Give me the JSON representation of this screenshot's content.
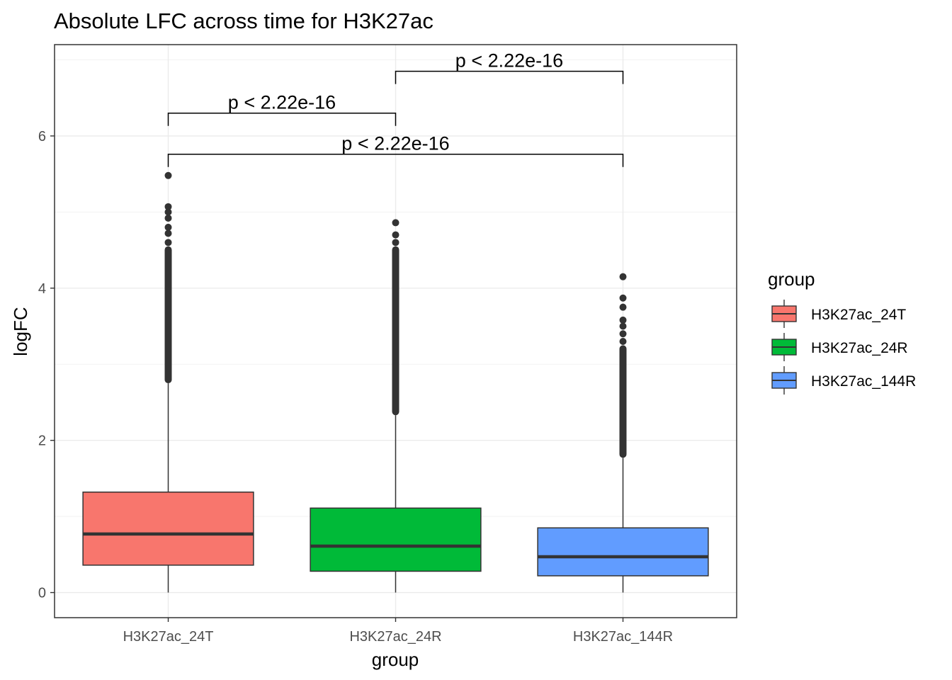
{
  "chart_data": {
    "type": "box",
    "title": "Absolute LFC across time for H3K27ac",
    "xlabel": "group",
    "ylabel": "logFC",
    "ylim": [
      -0.33,
      7.2
    ],
    "yticks": [
      0,
      2,
      4,
      6
    ],
    "grid": true,
    "legend": {
      "title": "group",
      "position": "right",
      "entries": [
        "H3K27ac_24T",
        "H3K27ac_24R",
        "H3K27ac_144R"
      ]
    },
    "categories": [
      "H3K27ac_24T",
      "H3K27ac_24R",
      "H3K27ac_144R"
    ],
    "boxes": [
      {
        "group": "H3K27ac_24T",
        "color": "#F8766D",
        "min": 0,
        "q1": 0.36,
        "median": 0.77,
        "q3": 1.32,
        "max": 2.75,
        "outliers_dense": [
          2.75,
          4.55
        ],
        "outliers": [
          4.6,
          4.72,
          4.8,
          4.92,
          5.0,
          5.07,
          5.48
        ]
      },
      {
        "group": "H3K27ac_24R",
        "color": "#00BA38",
        "min": 0,
        "q1": 0.28,
        "median": 0.61,
        "q3": 1.11,
        "max": 2.33,
        "outliers_dense": [
          2.33,
          4.55
        ],
        "outliers": [
          4.6,
          4.7,
          4.86
        ]
      },
      {
        "group": "H3K27ac_144R",
        "color": "#619CFF",
        "min": 0,
        "q1": 0.22,
        "median": 0.47,
        "q3": 0.85,
        "max": 1.77,
        "outliers_dense": [
          1.77,
          3.25
        ],
        "outliers": [
          3.3,
          3.4,
          3.5,
          3.58,
          3.75,
          3.87,
          4.15
        ]
      }
    ],
    "comparisons": [
      {
        "from": "H3K27ac_24T",
        "to": "H3K27ac_24R",
        "label": "p < 2.22e-16",
        "y": 6.3
      },
      {
        "from": "H3K27ac_24R",
        "to": "H3K27ac_144R",
        "label": "p < 2.22e-16",
        "y": 6.85
      },
      {
        "from": "H3K27ac_24T",
        "to": "H3K27ac_144R",
        "label": "p < 2.22e-16",
        "y": 5.76
      }
    ]
  }
}
